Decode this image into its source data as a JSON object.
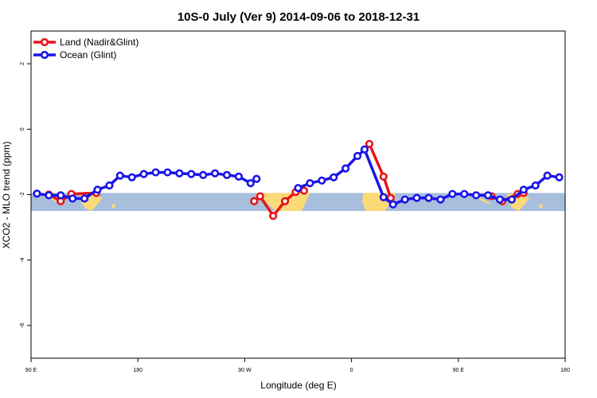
{
  "chart_data": {
    "type": "line",
    "title": "10S-0 July (Ver 9)   2014-09-06 to 2018-12-31",
    "xlabel": "Longitude (deg E)",
    "ylabel": "XCO2 - MLO trend (ppm)",
    "xlim": [
      90,
      540
    ],
    "ylim": [
      -7,
      3
    ],
    "x_ticks": [
      {
        "value": 90,
        "label": "90 E"
      },
      {
        "value": 180,
        "label": "180"
      },
      {
        "value": 270,
        "label": "90 W"
      },
      {
        "value": 360,
        "label": "0"
      },
      {
        "value": 450,
        "label": "90 E"
      },
      {
        "value": 540,
        "label": "180"
      }
    ],
    "y_ticks": [
      2,
      0,
      -2,
      -4,
      -6
    ],
    "band": {
      "y_low": -2.5,
      "y_high": -1.95,
      "color": "#a7bfdc",
      "land_color": "#fcd977"
    },
    "legend": {
      "position": "top-left"
    },
    "series": [
      {
        "name": "Land (Nadir&Glint)",
        "color": "#e8141a",
        "segments": [
          {
            "x": [
              105,
              115,
              124,
              145
            ],
            "y": [
              -2.0,
              -2.2,
              -1.98,
              -1.95
            ]
          },
          {
            "x": [
              278,
              283,
              294,
              304,
              313,
              320
            ],
            "y": [
              -2.2,
              -2.05,
              -2.65,
              -2.2,
              -1.92,
              -1.88
            ]
          },
          {
            "x": [
              375,
              387,
              393
            ],
            "y": [
              -0.45,
              -1.45,
              -2.1
            ]
          },
          {
            "x": [
              478,
              487,
              500,
              505
            ],
            "y": [
              -2.05,
              -2.2,
              -1.98,
              -1.95
            ]
          }
        ]
      },
      {
        "name": "Ocean (Glint)",
        "color": "#1a14e8",
        "segments": [
          {
            "x": [
              95,
              105,
              115,
              125,
              135,
              146,
              156,
              165,
              175,
              185,
              195,
              205,
              215,
              225,
              235,
              245,
              255,
              265,
              275,
              280
            ],
            "y": [
              -1.97,
              -2.02,
              -2.02,
              -2.12,
              -2.12,
              -1.85,
              -1.72,
              -1.42,
              -1.47,
              -1.37,
              -1.32,
              -1.32,
              -1.35,
              -1.37,
              -1.4,
              -1.35,
              -1.4,
              -1.45,
              -1.65,
              -1.52
            ]
          },
          {
            "x": [
              315,
              325,
              335,
              345,
              355,
              365,
              371,
              387,
              395,
              405,
              415,
              425,
              435,
              445,
              455,
              465,
              475,
              485,
              495,
              505,
              515,
              525,
              535
            ],
            "y": [
              -1.8,
              -1.65,
              -1.57,
              -1.47,
              -1.2,
              -0.82,
              -0.62,
              -2.08,
              -2.3,
              -2.15,
              -2.1,
              -2.1,
              -2.15,
              -1.98,
              -1.98,
              -2.02,
              -2.02,
              -2.15,
              -2.15,
              -1.85,
              -1.72,
              -1.42,
              -1.47
            ]
          }
        ]
      }
    ]
  }
}
